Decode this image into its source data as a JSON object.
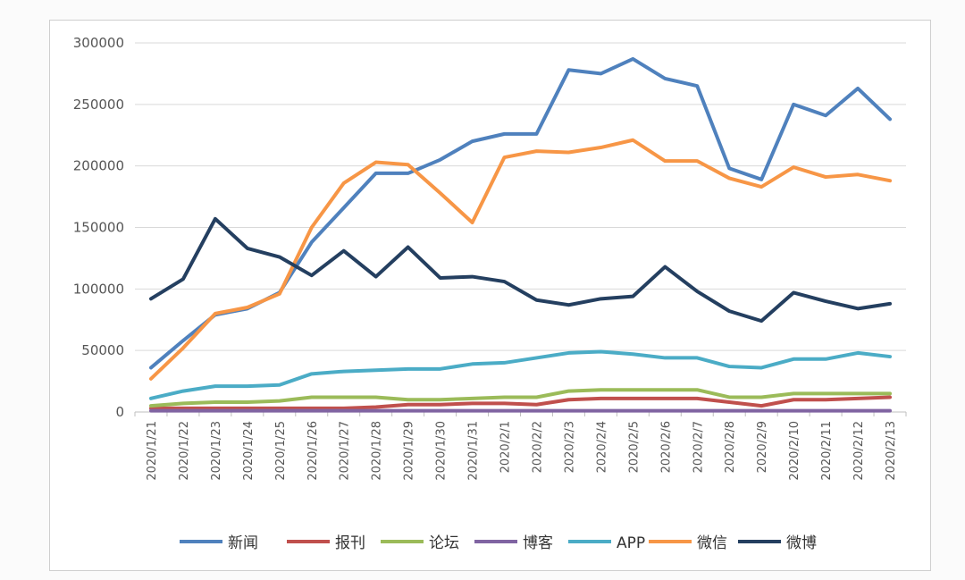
{
  "chart_data": {
    "type": "line",
    "title": "",
    "xlabel": "",
    "ylabel": "",
    "ylim": [
      0,
      300000
    ],
    "y_ticks": [
      0,
      50000,
      100000,
      150000,
      200000,
      250000,
      300000
    ],
    "y_tick_labels": [
      "0",
      "50000",
      "100000",
      "150000",
      "200000",
      "250000",
      "300000"
    ],
    "grid": "horizontal",
    "legend_position": "bottom",
    "categories": [
      "2020/1/21",
      "2020/1/22",
      "2020/1/23",
      "2020/1/24",
      "2020/1/25",
      "2020/1/26",
      "2020/1/27",
      "2020/1/28",
      "2020/1/29",
      "2020/1/30",
      "2020/1/31",
      "2020/2/1",
      "2020/2/2",
      "2020/2/3",
      "2020/2/4",
      "2020/2/5",
      "2020/2/6",
      "2020/2/7",
      "2020/2/8",
      "2020/2/9",
      "2020/2/10",
      "2020/2/11",
      "2020/2/12",
      "2020/2/13"
    ],
    "series": [
      {
        "name": "新闻",
        "color": "#4f81bd",
        "values": [
          36000,
          58000,
          79000,
          84000,
          97000,
          138000,
          166000,
          194000,
          194000,
          205000,
          220000,
          226000,
          226000,
          278000,
          275000,
          287000,
          271000,
          265000,
          198000,
          189000,
          250000,
          241000,
          263000,
          238000
        ]
      },
      {
        "name": "报刊",
        "color": "#c0504d",
        "values": [
          3000,
          3000,
          3000,
          3000,
          3000,
          3000,
          3000,
          4000,
          6000,
          6000,
          7000,
          7000,
          6000,
          10000,
          11000,
          11000,
          11000,
          11000,
          8000,
          5000,
          10000,
          10000,
          11000,
          12000
        ]
      },
      {
        "name": "论坛",
        "color": "#9bbb59",
        "values": [
          5000,
          7000,
          8000,
          8000,
          9000,
          12000,
          12000,
          12000,
          10000,
          10000,
          11000,
          12000,
          12000,
          17000,
          18000,
          18000,
          18000,
          18000,
          12000,
          12000,
          15000,
          15000,
          15000,
          15000
        ]
      },
      {
        "name": "博客",
        "color": "#8064a2",
        "values": [
          1000,
          1000,
          1000,
          1000,
          1000,
          1000,
          1000,
          1000,
          1000,
          1000,
          1000,
          1000,
          1000,
          1000,
          1000,
          1000,
          1000,
          1000,
          1000,
          1000,
          1000,
          1000,
          1000,
          1000
        ]
      },
      {
        "name": "APP",
        "color": "#4bacc6",
        "values": [
          11000,
          17000,
          21000,
          21000,
          22000,
          31000,
          33000,
          34000,
          35000,
          35000,
          39000,
          40000,
          44000,
          48000,
          49000,
          47000,
          44000,
          44000,
          37000,
          36000,
          43000,
          43000,
          48000,
          45000
        ]
      },
      {
        "name": "微信",
        "color": "#f79646",
        "values": [
          27000,
          52000,
          80000,
          85000,
          96000,
          150000,
          186000,
          203000,
          201000,
          178000,
          154000,
          207000,
          212000,
          211000,
          215000,
          221000,
          204000,
          204000,
          190000,
          183000,
          199000,
          191000,
          193000,
          188000
        ]
      },
      {
        "name": "微博",
        "color": "#243f60",
        "values": [
          92000,
          108000,
          157000,
          133000,
          126000,
          111000,
          131000,
          110000,
          134000,
          109000,
          110000,
          106000,
          91000,
          87000,
          92000,
          94000,
          118000,
          98000,
          82000,
          74000,
          97000,
          90000,
          84000,
          88000
        ]
      }
    ]
  }
}
